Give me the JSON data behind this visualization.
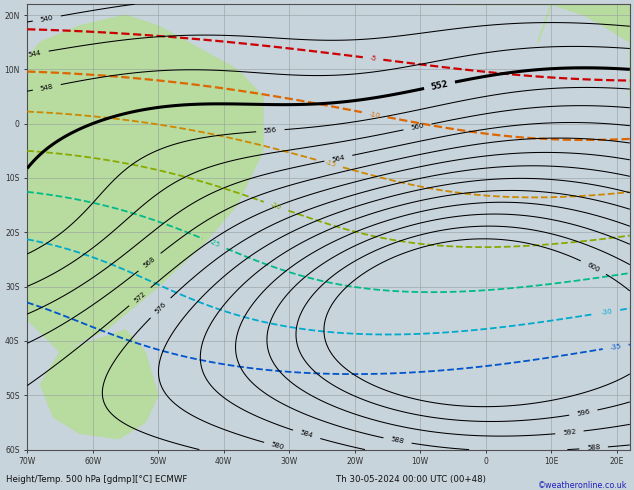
{
  "title": "Height/Temp. 500 hPa [gdmp][°C] ECMWF",
  "subtitle": "Th 30-05-2024 00:00 UTC (00+48)",
  "copyright": "©weatheronline.co.uk",
  "bg_ocean": "#c8d4dc",
  "bg_land": "#b8dba0",
  "grid_color": "#909898",
  "border_color": "#505050",
  "xlabel_color": "#303030",
  "bottom_text_color": "#101010",
  "copyright_color": "#2020bb",
  "geop_color": "#000000",
  "geop_thick_value": 552,
  "temp_colors": {
    "-5": "#cc0000",
    "-10": "#dd6600",
    "-15": "#cc8800",
    "-20": "#88aa00",
    "-25": "#00bb88",
    "-30": "#00aacc",
    "-35": "#0055cc"
  },
  "figsize": [
    6.34,
    4.9
  ],
  "dpi": 100
}
